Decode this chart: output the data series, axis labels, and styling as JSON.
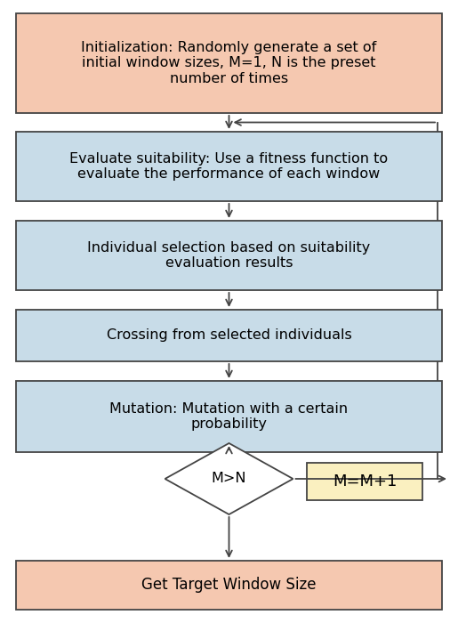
{
  "bg_color": "#ffffff",
  "init_text": "Initialization: Randomly generate a set of\ninitial window sizes, M=1, N is the preset\nnumber of times",
  "init_fc": "#f5c8b0",
  "eval_text": "Evaluate suitability: Use a fitness function to\nevaluate the performance of each window",
  "eval_fc": "#c8dce8",
  "select_text": "Individual selection based on suitability\nevaluation results",
  "select_fc": "#c8dce8",
  "cross_text": "Crossing from selected individuals",
  "cross_fc": "#c8dce8",
  "mutate_text": "Mutation: Mutation with a certain\nprobability",
  "mutate_fc": "#c8dce8",
  "diamond_text": "M>N",
  "diamond_fc": "#ffffff",
  "mplus1_text": "M=M+1",
  "mplus1_fc": "#faf0c0",
  "output_text": "Get Target Window Size",
  "output_fc": "#f5c8b0",
  "edge_color": "#444444",
  "font_size_main": 11.5,
  "font_size_small": 11.0,
  "lw": 1.3
}
